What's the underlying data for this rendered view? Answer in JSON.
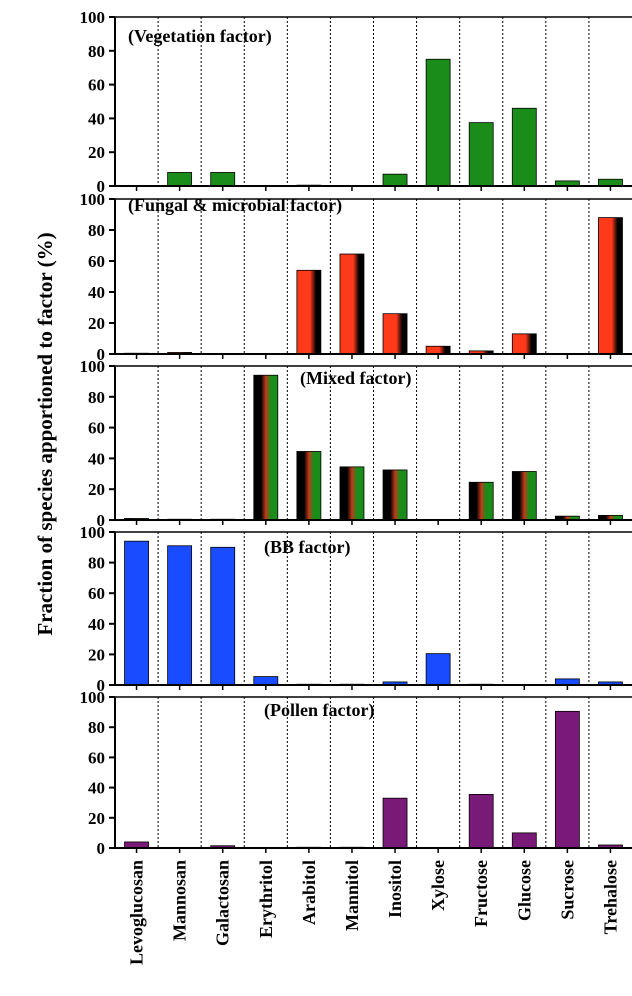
{
  "chart_data": {
    "type": "bar",
    "ylabel": "Fraction of species apportioned to factor (%)",
    "categories": [
      "Levoglucosan",
      "Mannosan",
      "Galactosan",
      "Erythritol",
      "Arabitol",
      "Mannitol",
      "Inositol",
      "Xylose",
      "Fructose",
      "Glucose",
      "Sucrose",
      "Trehalose"
    ],
    "yticks": [
      "0",
      "20",
      "40",
      "60",
      "80",
      "100"
    ],
    "ylim": [
      0,
      100
    ],
    "grid": "vertical dotted lines between categories",
    "panels": [
      {
        "title": "(Vegetation factor)",
        "style": "solid",
        "colors": [
          "#1a8c1a"
        ],
        "values": [
          0,
          8,
          8,
          0,
          0.5,
          0,
          7,
          75,
          37.5,
          46,
          3,
          4
        ]
      },
      {
        "title": "(Fungal & microbial factor)",
        "style": "gradient",
        "colors": [
          "#ff3a1a",
          "#000000"
        ],
        "values": [
          0.5,
          1,
          0,
          0,
          54,
          64.5,
          26,
          5,
          2,
          13,
          0,
          88
        ]
      },
      {
        "title": "(Mixed factor)",
        "style": "gradient",
        "colors": [
          "#000000",
          "#c0391a",
          "#1a8c1a"
        ],
        "values": [
          1,
          0.5,
          0.5,
          94,
          44.5,
          34.5,
          32.5,
          0,
          24.5,
          31.5,
          2.5,
          3
        ]
      },
      {
        "title": "(BB factor)",
        "style": "solid",
        "colors": [
          "#1a4cff"
        ],
        "values": [
          94,
          91,
          90,
          5.5,
          0.5,
          0.5,
          2,
          20.5,
          0.5,
          0,
          4,
          2
        ]
      },
      {
        "title": "(Pollen factor)",
        "style": "solid",
        "colors": [
          "#7a1a78"
        ],
        "values": [
          4,
          0,
          1.5,
          0,
          0.5,
          0.5,
          33,
          0,
          35.5,
          10,
          90.5,
          2
        ]
      }
    ]
  }
}
